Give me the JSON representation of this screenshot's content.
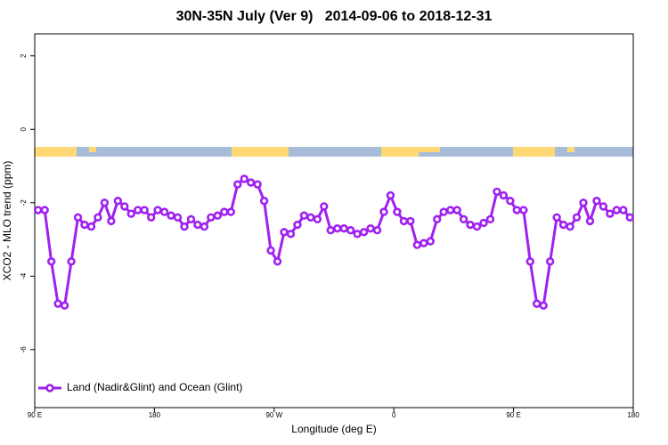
{
  "chart_data": {
    "type": "line",
    "title": "30N-35N July (Ver 9)   2014-09-06 to 2018-12-31",
    "xlabel": "Longitude (deg E)",
    "ylabel": "XCO2 - MLO trend (ppm)",
    "x": [
      92.5,
      97.5,
      102.5,
      107.5,
      112.5,
      117.5,
      122.5,
      127.5,
      132.5,
      137.5,
      142.5,
      147.5,
      152.5,
      157.5,
      162.5,
      167.5,
      172.5,
      177.5,
      182.5,
      187.5,
      192.5,
      197.5,
      202.5,
      207.5,
      212.5,
      217.5,
      222.5,
      227.5,
      232.5,
      237.5,
      242.5,
      247.5,
      252.5,
      257.5,
      262.5,
      267.5,
      272.5,
      277.5,
      282.5,
      287.5,
      292.5,
      297.5,
      302.5,
      307.5,
      312.5,
      317.5,
      322.5,
      327.5,
      332.5,
      337.5,
      342.5,
      347.5,
      352.5,
      357.5,
      362.5,
      367.5,
      372.5,
      377.5,
      382.5,
      387.5,
      392.5,
      397.5,
      402.5,
      407.5,
      412.5,
      417.5,
      422.5,
      427.5,
      432.5,
      437.5,
      442.5,
      447.5,
      452.5,
      457.5,
      462.5,
      467.5,
      472.5,
      477.5,
      482.5,
      487.5,
      492.5,
      497.5,
      502.5,
      507.5,
      512.5,
      517.5,
      522.5,
      527.5,
      532.5,
      537.5
    ],
    "series": [
      {
        "name": "Land (Nadir&Glint) and Ocean (Glint)",
        "color": "#a020f0",
        "values": [
          -2.2,
          -2.2,
          -3.6,
          -4.75,
          -4.8,
          -3.6,
          -2.4,
          -2.6,
          -2.65,
          -2.4,
          -2.0,
          -2.5,
          -1.95,
          -2.1,
          -2.3,
          -2.2,
          -2.2,
          -2.4,
          -2.2,
          -2.25,
          -2.35,
          -2.4,
          -2.65,
          -2.45,
          -2.6,
          -2.65,
          -2.4,
          -2.35,
          -2.25,
          -2.25,
          -1.5,
          -1.35,
          -1.45,
          -1.5,
          -1.95,
          -3.3,
          -3.6,
          -2.8,
          -2.85,
          -2.6,
          -2.35,
          -2.4,
          -2.45,
          -2.1,
          -2.75,
          -2.7,
          -2.7,
          -2.75,
          -2.85,
          -2.8,
          -2.7,
          -2.75,
          -2.25,
          -1.8,
          -2.25,
          -2.5,
          -2.5,
          -3.15,
          -3.1,
          -3.05,
          -2.45,
          -2.25,
          -2.2,
          -2.2,
          -2.45,
          -2.6,
          -2.65,
          -2.55,
          -2.45,
          -1.7,
          -1.8,
          -1.95,
          -2.2,
          -2.2,
          -3.6,
          -4.75,
          -4.8,
          -3.6,
          -2.4,
          -2.6,
          -2.65,
          -2.4,
          -2.0,
          -2.5,
          -1.95,
          -2.1,
          -2.3,
          -2.2,
          -2.2,
          -2.4
        ]
      }
    ],
    "xlim": [
      90,
      540
    ],
    "xticks": [
      {
        "value": 90,
        "label": "90 E"
      },
      180,
      {
        "value": 270,
        "label": "90 W"
      },
      {
        "value": 360,
        "label": "0"
      },
      {
        "value": 450,
        "label": "90 E"
      },
      {
        "value": 540,
        "label": "180"
      }
    ],
    "ylim": [
      -7.58,
      2.6
    ],
    "yticks": [
      2,
      0,
      -2,
      -4,
      -6
    ],
    "legend": "bottom-left"
  }
}
